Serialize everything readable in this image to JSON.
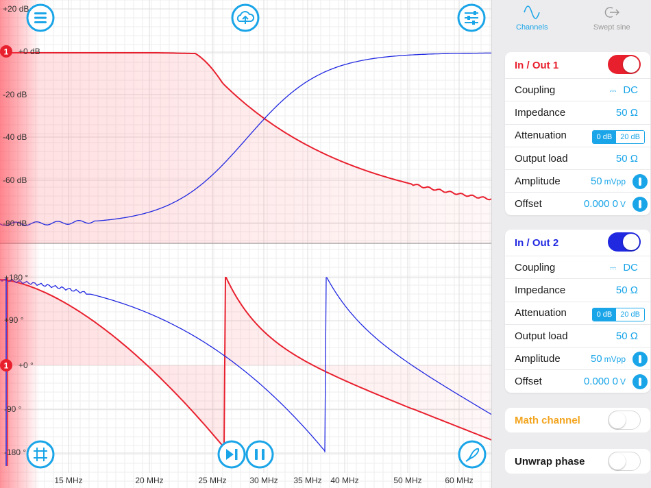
{
  "plot": {
    "magnitude_ticks": [
      "+20 dB",
      "+0 dB",
      "-20 dB",
      "-40 dB",
      "-60 dB",
      "-80 dB"
    ],
    "phase_ticks": [
      "+180 °",
      "+90 °",
      "+0 °",
      "-90 °",
      "-180 °"
    ],
    "freq_ticks": [
      "15 MHz",
      "20 MHz",
      "25 MHz",
      "30 MHz",
      "35 MHz",
      "40 MHz",
      "50 MHz",
      "60 MHz"
    ],
    "marker_label": "1",
    "colors": {
      "ch1": "#e8202e",
      "ch2": "#2028e0",
      "accent": "#1aa5e8"
    }
  },
  "tabs": [
    {
      "label": "Channels",
      "icon": "sine-wave-icon",
      "active": true
    },
    {
      "label": "Swept sine",
      "icon": "export-arrow-icon",
      "active": false
    }
  ],
  "ch1": {
    "title": "In / Out 1",
    "enabled": true,
    "coupling_label": "Coupling",
    "coupling_value": "DC",
    "impedance_label": "Impedance",
    "impedance_value": "50 Ω",
    "attenuation_label": "Attenuation",
    "att_options": [
      "0 dB",
      "20 dB"
    ],
    "output_load_label": "Output load",
    "output_load_value": "50 Ω",
    "amplitude_label": "Amplitude",
    "amplitude_value": "50",
    "amplitude_unit": "mVpp",
    "offset_label": "Offset",
    "offset_value": "0.000 0",
    "offset_unit": "V"
  },
  "ch2": {
    "title": "In / Out 2",
    "enabled": true,
    "coupling_label": "Coupling",
    "coupling_value": "DC",
    "impedance_label": "Impedance",
    "impedance_value": "50 Ω",
    "attenuation_label": "Attenuation",
    "att_options": [
      "0 dB",
      "20 dB"
    ],
    "output_load_label": "Output load",
    "output_load_value": "50 Ω",
    "amplitude_label": "Amplitude",
    "amplitude_value": "50",
    "amplitude_unit": "mVpp",
    "offset_label": "Offset",
    "offset_value": "0.000 0",
    "offset_unit": "V"
  },
  "math_channel": {
    "label": "Math channel",
    "enabled": false
  },
  "unwrap_phase": {
    "label": "Unwrap phase",
    "enabled": false
  }
}
